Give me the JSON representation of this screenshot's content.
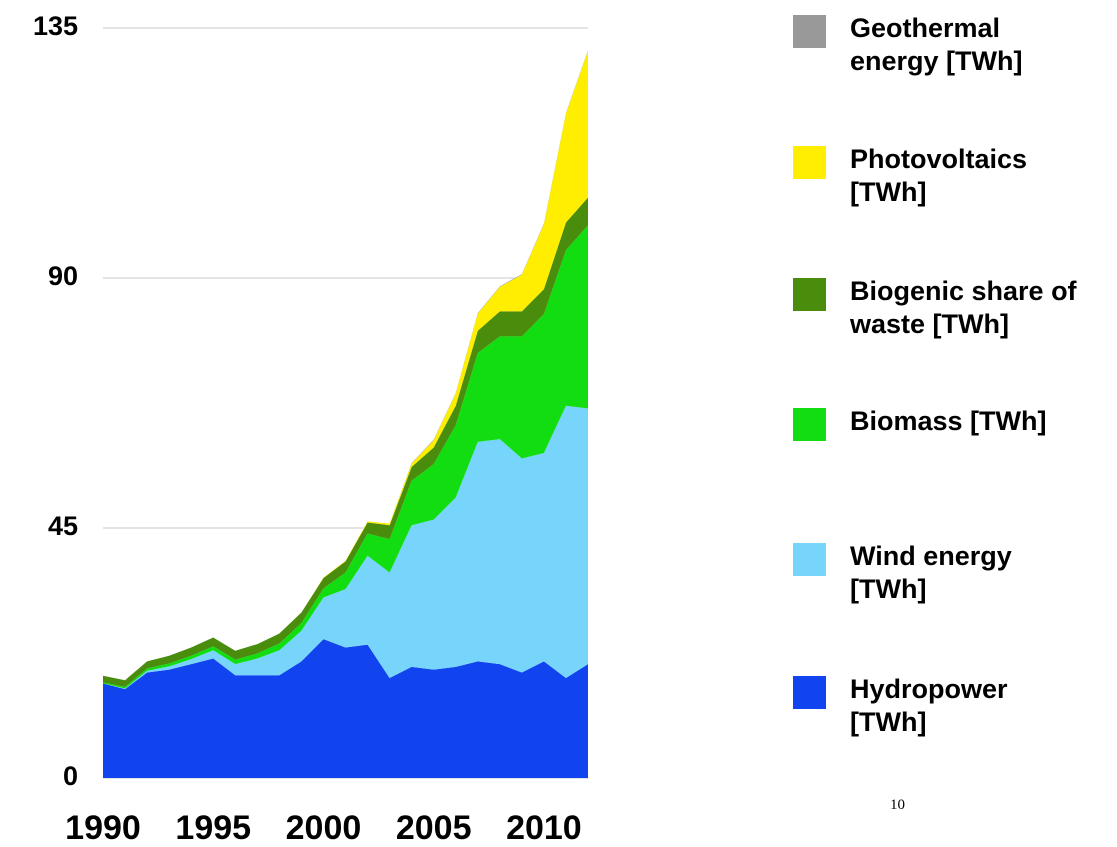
{
  "chart_data": {
    "type": "stacked_area",
    "x": [
      1990,
      1991,
      1992,
      1993,
      1994,
      1995,
      1996,
      1997,
      1998,
      1999,
      2000,
      2001,
      2002,
      2003,
      2004,
      2005,
      2006,
      2007,
      2008,
      2009,
      2010,
      2011,
      2012
    ],
    "xlim": [
      1990,
      2012
    ],
    "xticks": [
      1990,
      1995,
      2000,
      2005,
      2010
    ],
    "ylim": [
      0,
      135
    ],
    "yticks": [
      0,
      45,
      90,
      135
    ],
    "grid": true,
    "legend": "right",
    "series": [
      {
        "name": "Geothermal energy [TWh]",
        "color": "#999999",
        "values": [
          0,
          0,
          0,
          0,
          0,
          0,
          0,
          0,
          0,
          0,
          0,
          0,
          0,
          0,
          0.1,
          0.1,
          0.1,
          0.1,
          0.1,
          0.1,
          0.1,
          0.1,
          0.1
        ]
      },
      {
        "name": "Photovoltaics [TWh]",
        "color": "#ffee00",
        "values": [
          0,
          0,
          0,
          0,
          0,
          0,
          0,
          0,
          0,
          0,
          0.1,
          0.1,
          0.2,
          0.3,
          0.6,
          1.3,
          2.2,
          3.1,
          4.4,
          6.6,
          11.7,
          19.6,
          26.4
        ]
      },
      {
        "name": "Biogenic share of waste [TWh]",
        "color": "#4a8c0c",
        "values": [
          1.2,
          1.2,
          1.3,
          1.4,
          1.5,
          1.6,
          1.6,
          1.7,
          1.8,
          1.9,
          1.9,
          2,
          2,
          2.5,
          2.5,
          3,
          3.5,
          4,
          4.5,
          4.5,
          4.5,
          5,
          5
        ]
      },
      {
        "name": "Biomass [TWh]",
        "color": "#11dd11",
        "values": [
          0.2,
          0.3,
          0.4,
          0.5,
          0.6,
          0.7,
          0.8,
          0.9,
          1.2,
          1.4,
          1.6,
          3,
          4,
          6,
          8,
          10,
          13,
          16,
          18.5,
          22,
          25,
          28,
          33
        ]
      },
      {
        "name": "Wind energy [TWh]",
        "color": "#77d4fb",
        "values": [
          0,
          0.1,
          0.3,
          0.6,
          0.9,
          1.5,
          2,
          3,
          4.5,
          5.5,
          7.5,
          10.5,
          16,
          19,
          25.5,
          27,
          30.5,
          39.5,
          40.5,
          38.5,
          37.5,
          49,
          46
        ]
      },
      {
        "name": "Hydropower [TWh]",
        "color": "#1144ee",
        "values": [
          17,
          16,
          19,
          19.5,
          20.5,
          21.5,
          18.5,
          18.5,
          18.5,
          21,
          25,
          23.5,
          24,
          18,
          20,
          19.5,
          20,
          21,
          20.5,
          19,
          21,
          18,
          20.5
        ]
      }
    ],
    "page_number": "10"
  }
}
